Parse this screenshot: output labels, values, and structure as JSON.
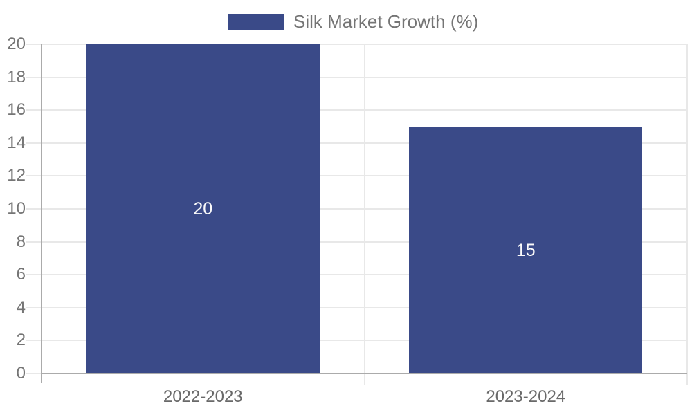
{
  "chart_data": {
    "type": "bar",
    "title": "",
    "categories": [
      "2022-2023",
      "2023-2024"
    ],
    "series": [
      {
        "name": "Silk Market Growth (%)",
        "values": [
          20,
          15
        ],
        "color": "#3a4a88"
      }
    ],
    "value_labels": [
      "20",
      "15"
    ],
    "ylim": [
      0,
      20
    ],
    "yticks": [
      0,
      2,
      4,
      6,
      8,
      10,
      12,
      14,
      16,
      18,
      20
    ],
    "xlabel": "",
    "ylabel": "",
    "grid": "horizontal gridlines on, plus vertical category separator and right border",
    "legend_position": "top-center",
    "value_label_position": "inside-center"
  },
  "colors": {
    "bar": "#3a4a88",
    "grid": "#e8e8e8",
    "axis": "#ababab",
    "tick_text": "#757575",
    "category_text": "#696969",
    "legend_text": "#757575",
    "value_label_text": "#fafafa",
    "background": "#ffffff"
  }
}
